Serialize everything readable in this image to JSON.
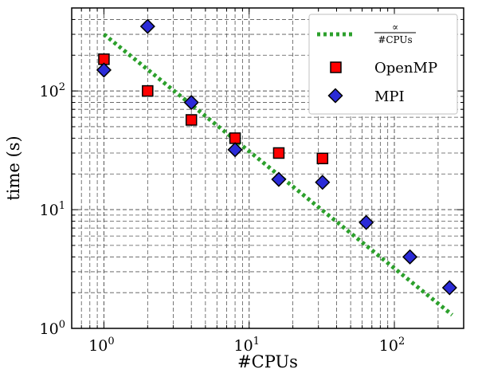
{
  "chart_data": {
    "type": "scatter",
    "xlabel": "#CPUs",
    "ylabel": "time (s)",
    "xscale": "log",
    "yscale": "log",
    "xlim": [
      0.6,
      300
    ],
    "ylim": [
      1,
      500
    ],
    "x_ticks": [
      {
        "value": 1,
        "base": "10",
        "exp": "0"
      },
      {
        "value": 10,
        "base": "10",
        "exp": "1"
      },
      {
        "value": 100,
        "base": "10",
        "exp": "2"
      }
    ],
    "y_ticks": [
      {
        "value": 1,
        "base": "10",
        "exp": "0"
      },
      {
        "value": 10,
        "base": "10",
        "exp": "1"
      },
      {
        "value": 100,
        "base": "10",
        "exp": "2"
      }
    ],
    "grid": true,
    "legend_position": "top-right",
    "series": [
      {
        "name": "∝ #CPUs",
        "legend_numerator": "∝",
        "legend_denominator": "#CPUs",
        "kind": "dotted-line",
        "color": "#2ca02c",
        "x": [
          1,
          250
        ],
        "y": [
          300,
          1.3
        ]
      },
      {
        "name": "OpenMP",
        "kind": "square",
        "color": "#ff0000",
        "x": [
          1,
          2,
          4,
          8,
          16,
          32
        ],
        "y": [
          185,
          100,
          57,
          40,
          30,
          27
        ]
      },
      {
        "name": "MPI",
        "kind": "diamond",
        "color": "#2b2bd8",
        "x": [
          1,
          2,
          4,
          8,
          16,
          32,
          64,
          128,
          240
        ],
        "y": [
          150,
          350,
          80,
          32,
          18,
          17,
          7.8,
          4,
          2.2
        ]
      }
    ]
  }
}
